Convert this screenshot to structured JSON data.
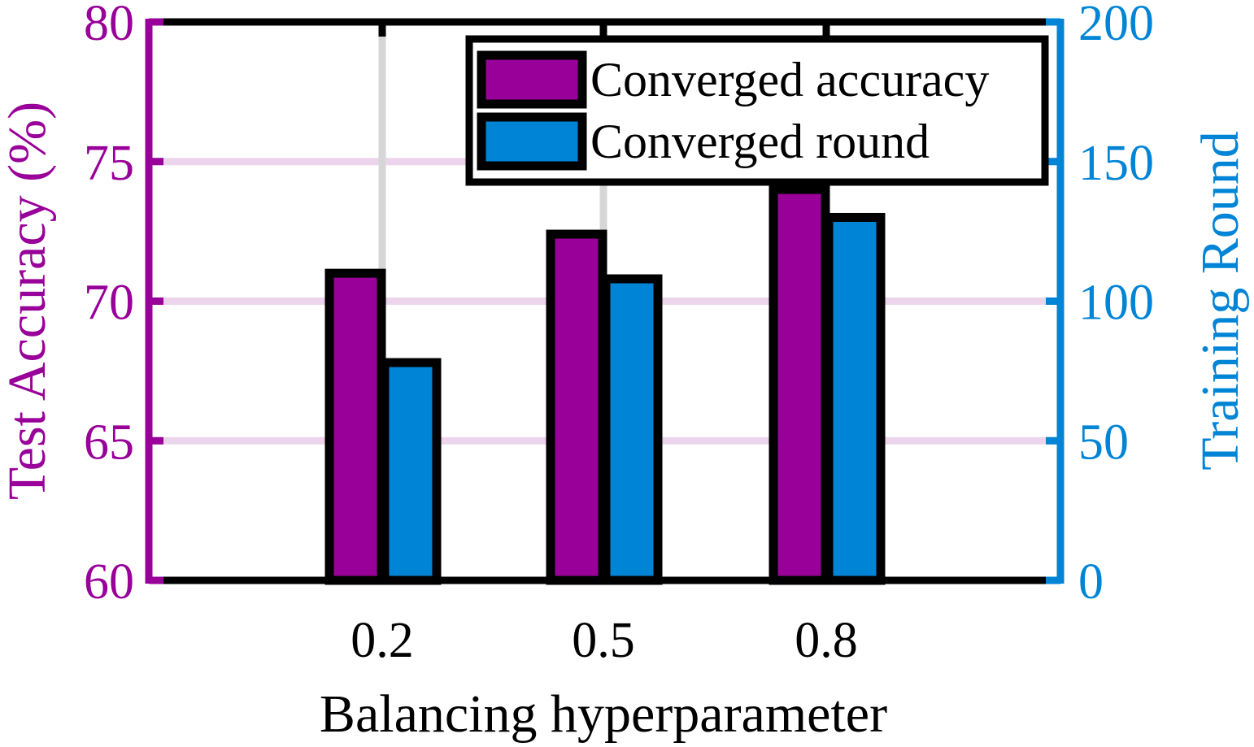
{
  "chart_data": {
    "type": "bar",
    "categories": [
      "0.2",
      "0.5",
      "0.8"
    ],
    "xlabel": "Balancing hyperparameter",
    "series": [
      {
        "name": "Converged accuracy",
        "axis": "left",
        "color": "#990099",
        "values": [
          71.0,
          72.4,
          74.0
        ]
      },
      {
        "name": "Converged round",
        "axis": "right",
        "color": "#0084D6",
        "values": [
          78,
          108,
          130
        ]
      }
    ],
    "y_left": {
      "label": "Test Accuracy (%)",
      "ylim": [
        60,
        80
      ],
      "ticks": [
        "60",
        "65",
        "70",
        "75",
        "80"
      ],
      "color": "#990099"
    },
    "y_right": {
      "label": "Training Round",
      "ylim": [
        0,
        200
      ],
      "ticks": [
        "0",
        "50",
        "100",
        "150",
        "200"
      ],
      "color": "#0084D6"
    },
    "grid": true,
    "legend_position": "top-right"
  }
}
